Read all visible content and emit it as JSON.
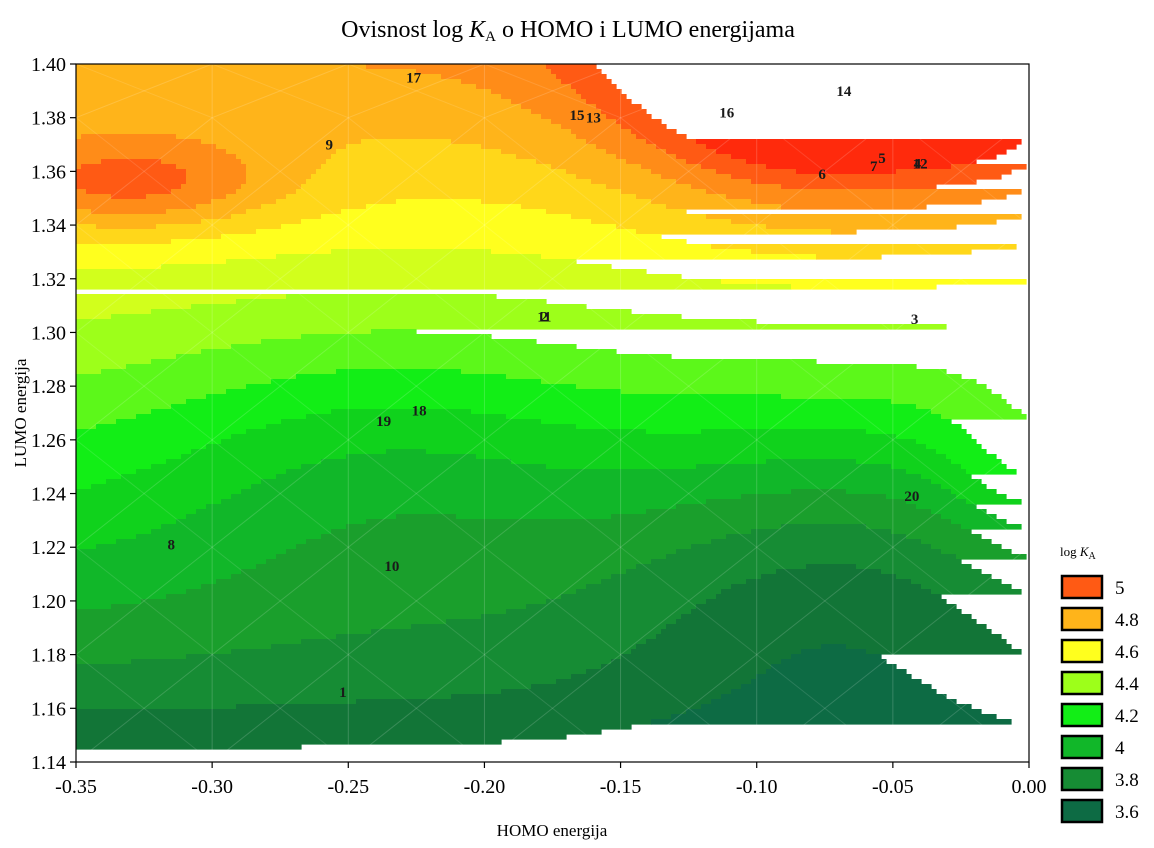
{
  "chart_data": {
    "type": "contour",
    "title_prefix": "Ovisnost log ",
    "title_var": "K",
    "title_sub": "A",
    "title_suffix": " o HOMO i LUMO energijama",
    "xlabel": "HOMO energija",
    "ylabel": "LUMO energija",
    "xlim": [
      -0.35,
      0.0
    ],
    "ylim": [
      1.14,
      1.4
    ],
    "x_ticks": [
      "-0.35",
      "-0.30",
      "-0.25",
      "-0.20",
      "-0.15",
      "-0.10",
      "-0.05",
      "0.00"
    ],
    "y_ticks": [
      "1.14",
      "1.16",
      "1.18",
      "1.20",
      "1.22",
      "1.24",
      "1.26",
      "1.28",
      "1.30",
      "1.32",
      "1.34",
      "1.36",
      "1.38",
      "1.40"
    ],
    "legend": {
      "title_prefix": "log ",
      "title_var": "K",
      "title_sub": "A",
      "levels": [
        {
          "label": "5",
          "color": "#ff5a14"
        },
        {
          "label": "4.8",
          "color": "#ffb41a"
        },
        {
          "label": "4.6",
          "color": "#ffff1e"
        },
        {
          "label": "4.4",
          "color": "#9dff1a"
        },
        {
          "label": "4.2",
          "color": "#12ee16"
        },
        {
          "label": "4",
          "color": "#11b729"
        },
        {
          "label": "3.8",
          "color": "#168c34"
        },
        {
          "label": "3.6",
          "color": "#0d6b44"
        }
      ]
    },
    "level_colors": [
      "#0d6b44",
      "#127537",
      "#168c34",
      "#1a9f2c",
      "#11b729",
      "#10d21c",
      "#12ee16",
      "#5cf81a",
      "#9dff1a",
      "#d2ff1c",
      "#ffff1e",
      "#ffd71a",
      "#ffb41a",
      "#ff8c18",
      "#ff5a14",
      "#ff2a0c"
    ],
    "points": [
      {
        "label": "1",
        "x": -0.252,
        "y": 1.166
      },
      {
        "label": "2",
        "x": -0.178,
        "y": 1.306
      },
      {
        "label": "3",
        "x": -0.042,
        "y": 1.305
      },
      {
        "label": "4",
        "x": -0.041,
        "y": 1.363
      },
      {
        "label": "5",
        "x": -0.054,
        "y": 1.365
      },
      {
        "label": "6",
        "x": -0.076,
        "y": 1.359
      },
      {
        "label": "7",
        "x": -0.057,
        "y": 1.362
      },
      {
        "label": "8",
        "x": -0.315,
        "y": 1.221
      },
      {
        "label": "9",
        "x": -0.257,
        "y": 1.37
      },
      {
        "label": "10",
        "x": -0.234,
        "y": 1.213
      },
      {
        "label": "11",
        "x": -0.178,
        "y": 1.306
      },
      {
        "label": "12",
        "x": -0.04,
        "y": 1.363
      },
      {
        "label": "13",
        "x": -0.16,
        "y": 1.38
      },
      {
        "label": "14",
        "x": -0.068,
        "y": 1.39
      },
      {
        "label": "15",
        "x": -0.166,
        "y": 1.381
      },
      {
        "label": "16",
        "x": -0.111,
        "y": 1.382
      },
      {
        "label": "17",
        "x": -0.226,
        "y": 1.395
      },
      {
        "label": "18",
        "x": -0.224,
        "y": 1.271
      },
      {
        "label": "19",
        "x": -0.237,
        "y": 1.267
      },
      {
        "label": "20",
        "x": -0.043,
        "y": 1.239
      }
    ]
  }
}
